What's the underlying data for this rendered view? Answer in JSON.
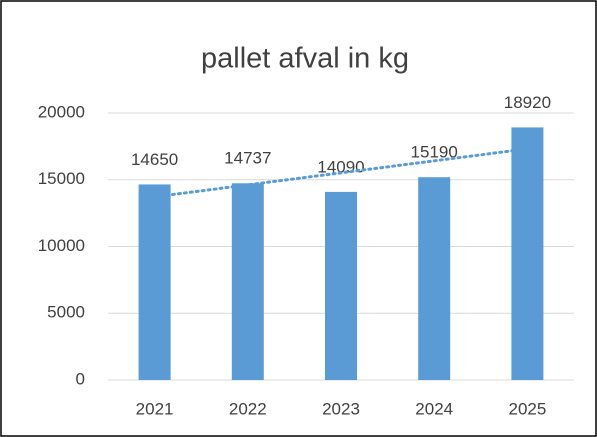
{
  "chart_data": {
    "type": "bar",
    "title": "pallet afval in kg",
    "categories": [
      "2021",
      "2022",
      "2023",
      "2024",
      "2025"
    ],
    "values": [
      14650,
      14737,
      14090,
      15190,
      18920
    ],
    "color": "#5b9bd5",
    "ylim": [
      0,
      20000
    ],
    "yticks": [
      0,
      5000,
      10000,
      15000,
      20000
    ],
    "grid": true,
    "trendline": true
  }
}
